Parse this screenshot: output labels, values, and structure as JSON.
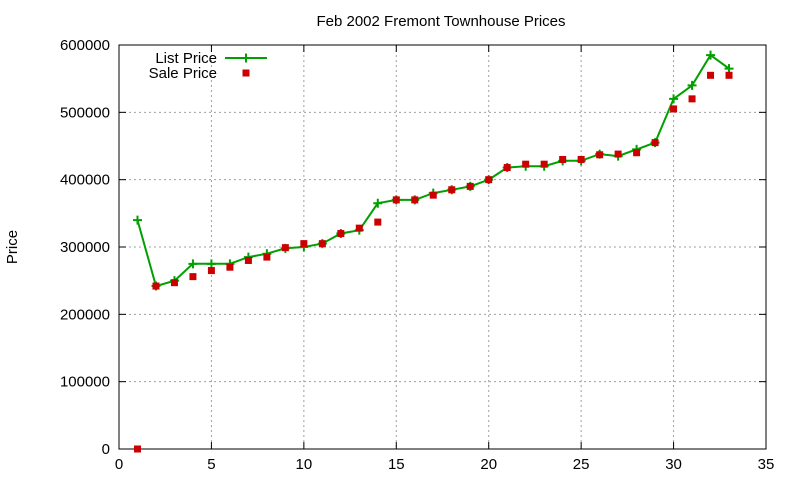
{
  "chart_data": {
    "type": "line",
    "title": "Feb 2002 Fremont Townhouse Prices",
    "xlabel": "",
    "ylabel": "Price",
    "xlim": [
      0,
      35
    ],
    "ylim": [
      0,
      600000
    ],
    "xticks": [
      0,
      5,
      10,
      15,
      20,
      25,
      30,
      35
    ],
    "yticks": [
      0,
      100000,
      200000,
      300000,
      400000,
      500000,
      600000
    ],
    "x_tick_labels": [
      "0",
      "5",
      "10",
      "15",
      "20",
      "25",
      "30",
      "35"
    ],
    "y_tick_labels": [
      "0",
      "100000",
      "200000",
      "300000",
      "400000",
      "500000",
      "600000"
    ],
    "grid": true,
    "legend_position": "top-left",
    "series": [
      {
        "name": "List Price",
        "style": "linespoints",
        "marker": "plus",
        "color": "#00a000",
        "x": [
          1,
          2,
          3,
          4,
          5,
          6,
          7,
          8,
          9,
          10,
          11,
          12,
          13,
          14,
          15,
          16,
          17,
          18,
          19,
          20,
          21,
          22,
          23,
          24,
          25,
          26,
          27,
          28,
          29,
          30,
          31,
          32,
          33
        ],
        "y": [
          340000,
          242000,
          250000,
          275000,
          275000,
          275000,
          285000,
          290000,
          298000,
          300000,
          305000,
          320000,
          325000,
          365000,
          370000,
          370000,
          380000,
          385000,
          390000,
          400000,
          418000,
          420000,
          420000,
          428000,
          428000,
          438000,
          435000,
          445000,
          455000,
          520000,
          540000,
          585000,
          565000
        ]
      },
      {
        "name": "Sale Price",
        "style": "points",
        "marker": "square",
        "color": "#cc0000",
        "x": [
          1,
          2,
          3,
          4,
          5,
          6,
          7,
          8,
          9,
          10,
          11,
          12,
          13,
          14,
          15,
          16,
          17,
          18,
          19,
          20,
          21,
          22,
          23,
          24,
          25,
          26,
          27,
          28,
          29,
          30,
          31,
          32,
          33
        ],
        "y": [
          0,
          242000,
          247000,
          256000,
          265000,
          270000,
          280000,
          285000,
          299000,
          305000,
          305000,
          320000,
          328000,
          337000,
          370000,
          370000,
          377000,
          385000,
          390000,
          400000,
          418000,
          423000,
          423000,
          430000,
          430000,
          437000,
          438000,
          440000,
          455000,
          505000,
          520000,
          555000,
          555000
        ]
      }
    ]
  }
}
